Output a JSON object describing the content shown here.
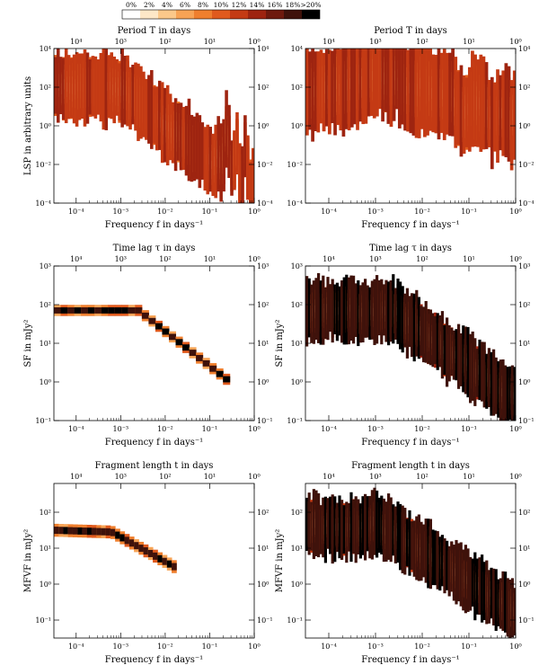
{
  "chart_data": [
    {
      "type": "heatmap",
      "name": "colorbar",
      "categories": [
        "0%",
        "2%",
        "4%",
        "6%",
        "8%",
        "10%",
        "12%",
        "14%",
        "16%",
        "18%",
        ">20%"
      ],
      "colors": [
        "#ffffff",
        "#fde7c7",
        "#fbc88a",
        "#f7a355",
        "#ef7f2e",
        "#e05a1d",
        "#c43a14",
        "#9e2410",
        "#6e1a0e",
        "#3f120b",
        "#000000"
      ]
    },
    {
      "type": "heatmap",
      "panel": "top-left",
      "title": "Period T in days",
      "xlabel": "Frequency f in days⁻¹",
      "ylabel": "LSP in arbitrary units",
      "x_log_range": [
        -4.5,
        0
      ],
      "y_log_range": [
        -4,
        4
      ],
      "bottom_ticks": [
        {
          "v": -4,
          "label": "10⁻⁴"
        },
        {
          "v": -3,
          "label": "10⁻³"
        },
        {
          "v": -2,
          "label": "10⁻²"
        },
        {
          "v": -1,
          "label": "10⁻¹"
        },
        {
          "v": 0,
          "label": "10⁰"
        }
      ],
      "top_ticks": [
        {
          "v": -4,
          "label": "10⁴"
        },
        {
          "v": -3,
          "label": "10³"
        },
        {
          "v": -2,
          "label": "10²"
        },
        {
          "v": -1,
          "label": "10¹"
        },
        {
          "v": 0,
          "label": "10⁰"
        }
      ],
      "y_ticks": [
        {
          "v": 4,
          "label": "10⁴"
        },
        {
          "v": 2,
          "label": "10²"
        },
        {
          "v": 0,
          "label": "10⁰"
        },
        {
          "v": -2,
          "label": "10⁻²"
        },
        {
          "v": -4,
          "label": "10⁻⁴"
        }
      ],
      "band": {
        "x": [
          -4.5,
          -3.05,
          -0.9,
          -0.82,
          -0.72,
          -0.62,
          -0.5,
          -0.4,
          -0.3,
          -0.2,
          -0.1,
          0.0
        ],
        "y": [
          2.0,
          2.0,
          -1.9,
          -1.2,
          -2.2,
          0.2,
          -2.6,
          -0.8,
          -3.2,
          -1.0,
          -3.6,
          -2.5
        ],
        "spread": 0.7,
        "style": "diffuse"
      }
    },
    {
      "type": "heatmap",
      "panel": "top-right",
      "title": "Period T in days",
      "xlabel": "Frequency f in days⁻¹",
      "ylabel": "",
      "x_log_range": [
        -4.5,
        0
      ],
      "y_log_range": [
        -4,
        4
      ],
      "bottom_ticks": [
        {
          "v": -4,
          "label": "10⁻⁴"
        },
        {
          "v": -3,
          "label": "10⁻³"
        },
        {
          "v": -2,
          "label": "10⁻²"
        },
        {
          "v": -1,
          "label": "10⁻¹"
        },
        {
          "v": 0,
          "label": "10⁰"
        }
      ],
      "top_ticks": [
        {
          "v": -4,
          "label": "10⁴"
        },
        {
          "v": -3,
          "label": "10³"
        },
        {
          "v": -2,
          "label": "10²"
        },
        {
          "v": -1,
          "label": "10¹"
        },
        {
          "v": 0,
          "label": "10⁰"
        }
      ],
      "y_ticks": [
        {
          "v": 4,
          "label": "10⁴"
        },
        {
          "v": 2,
          "label": "10²"
        },
        {
          "v": 0,
          "label": "10⁰"
        },
        {
          "v": -2,
          "label": "10⁻²"
        },
        {
          "v": -4,
          "label": "10⁻⁴"
        }
      ],
      "band": {
        "x": [
          -4.5,
          -4.0,
          -3.5,
          -3.0,
          -2.7,
          -2.5,
          -2.2,
          -2.0,
          -1.6,
          -1.3,
          -1.1,
          -0.9,
          -0.7,
          -0.5,
          -0.3,
          -0.1,
          0.0
        ],
        "y": [
          1.6,
          1.9,
          2.2,
          2.5,
          2.3,
          2.4,
          1.8,
          2.0,
          1.7,
          1.5,
          0.5,
          1.4,
          1.3,
          0.3,
          1.0,
          0.2,
          1.0
        ],
        "spread": 0.85,
        "style": "diffuse"
      }
    },
    {
      "type": "heatmap",
      "panel": "middle-left",
      "title": "Time lag τ in days",
      "xlabel": "Frequency f in days⁻¹",
      "ylabel": "SF in mJy²",
      "x_log_range": [
        -4.5,
        0
      ],
      "y_log_range": [
        -1,
        3
      ],
      "bottom_ticks": [
        {
          "v": -4,
          "label": "10⁻⁴"
        },
        {
          "v": -3,
          "label": "10⁻³"
        },
        {
          "v": -2,
          "label": "10⁻²"
        },
        {
          "v": -1,
          "label": "10⁻¹"
        },
        {
          "v": 0,
          "label": "10⁰"
        }
      ],
      "top_ticks": [
        {
          "v": -4,
          "label": "10⁴"
        },
        {
          "v": -3,
          "label": "10³"
        },
        {
          "v": -2,
          "label": "10²"
        },
        {
          "v": -1,
          "label": "10¹"
        },
        {
          "v": 0,
          "label": "10⁰"
        }
      ],
      "y_ticks": [
        {
          "v": 3,
          "label": "10³"
        },
        {
          "v": 2,
          "label": "10²"
        },
        {
          "v": 1,
          "label": "10¹"
        },
        {
          "v": 0,
          "label": "10⁰"
        },
        {
          "v": -1,
          "label": "10⁻¹"
        }
      ],
      "band": {
        "x": [
          -4.5,
          -2.6,
          -0.55
        ],
        "y": [
          1.85,
          1.85,
          0.0
        ],
        "spread": 0.08,
        "style": "blocks",
        "x_end": -0.55
      }
    },
    {
      "type": "heatmap",
      "panel": "middle-right",
      "title": "Time lag τ in days",
      "xlabel": "Frequency f in days⁻¹",
      "ylabel": "SF in mJy²",
      "x_log_range": [
        -4.5,
        0
      ],
      "y_log_range": [
        -1,
        3
      ],
      "bottom_ticks": [
        {
          "v": -4,
          "label": "10⁻⁴"
        },
        {
          "v": -3,
          "label": "10⁻³"
        },
        {
          "v": -2,
          "label": "10⁻²"
        },
        {
          "v": -1,
          "label": "10⁻¹"
        },
        {
          "v": 0,
          "label": "10⁰"
        }
      ],
      "top_ticks": [
        {
          "v": -4,
          "label": "10⁴"
        },
        {
          "v": -3,
          "label": "10³"
        },
        {
          "v": -2,
          "label": "10²"
        },
        {
          "v": -1,
          "label": "10¹"
        },
        {
          "v": 0,
          "label": "10⁰"
        }
      ],
      "y_ticks": [
        {
          "v": 3,
          "label": "10³"
        },
        {
          "v": 2,
          "label": "10²"
        },
        {
          "v": 1,
          "label": "10¹"
        },
        {
          "v": 0,
          "label": "10⁰"
        },
        {
          "v": -1,
          "label": "10⁻¹"
        }
      ],
      "band": {
        "x": [
          -4.5,
          -2.6,
          0.0
        ],
        "y": [
          1.85,
          1.85,
          -0.45
        ],
        "spread": 0.3,
        "style": "dense"
      }
    },
    {
      "type": "heatmap",
      "panel": "bottom-left",
      "title": "Fragment length t in days",
      "xlabel": "Frequency f in days⁻¹",
      "ylabel": "MFVF in mJy²",
      "x_log_range": [
        -4.5,
        0
      ],
      "y_log_range": [
        -1.5,
        2.8
      ],
      "bottom_ticks": [
        {
          "v": -4,
          "label": "10⁻⁴"
        },
        {
          "v": -3,
          "label": "10⁻³"
        },
        {
          "v": -2,
          "label": "10⁻²"
        },
        {
          "v": -1,
          "label": "10⁻¹"
        },
        {
          "v": 0,
          "label": "10⁰"
        }
      ],
      "top_ticks": [
        {
          "v": -4,
          "label": "10⁴"
        },
        {
          "v": -3,
          "label": "10³"
        },
        {
          "v": -2,
          "label": "10²"
        },
        {
          "v": -1,
          "label": "10¹"
        },
        {
          "v": 0,
          "label": "10⁰"
        }
      ],
      "y_ticks": [
        {
          "v": 2,
          "label": "10²"
        },
        {
          "v": 1,
          "label": "10¹"
        },
        {
          "v": 0,
          "label": "10⁰"
        },
        {
          "v": -1,
          "label": "10⁻¹"
        }
      ],
      "band": {
        "x": [
          -4.5,
          -3.2,
          -1.75
        ],
        "y": [
          1.5,
          1.45,
          0.45
        ],
        "spread": 0.1,
        "style": "blocks",
        "x_end": -1.75
      }
    },
    {
      "type": "heatmap",
      "panel": "bottom-right",
      "title": "Fragment length t in days",
      "xlabel": "Frequency f in days⁻¹",
      "ylabel": "MFVF in mJy²",
      "x_log_range": [
        -4.5,
        0
      ],
      "y_log_range": [
        -1.5,
        2.8
      ],
      "bottom_ticks": [
        {
          "v": -4,
          "label": "10⁻⁴"
        },
        {
          "v": -3,
          "label": "10⁻³"
        },
        {
          "v": -2,
          "label": "10⁻²"
        },
        {
          "v": -1,
          "label": "10⁻¹"
        },
        {
          "v": 0,
          "label": "10⁰"
        }
      ],
      "top_ticks": [
        {
          "v": -4,
          "label": "10⁴"
        },
        {
          "v": -3,
          "label": "10³"
        },
        {
          "v": -2,
          "label": "10²"
        },
        {
          "v": -1,
          "label": "10¹"
        },
        {
          "v": 0,
          "label": "10⁰"
        }
      ],
      "y_ticks": [
        {
          "v": 2,
          "label": "10²"
        },
        {
          "v": 1,
          "label": "10¹"
        },
        {
          "v": 0,
          "label": "10⁰"
        },
        {
          "v": -1,
          "label": "10⁻¹"
        }
      ],
      "band": {
        "x": [
          -4.5,
          -3.9,
          -3.5,
          -3.0,
          -2.5,
          -1.5,
          0.0
        ],
        "y": [
          1.6,
          1.6,
          1.5,
          1.7,
          1.35,
          0.5,
          -0.75
        ],
        "spread": 0.32,
        "style": "dense"
      }
    }
  ]
}
